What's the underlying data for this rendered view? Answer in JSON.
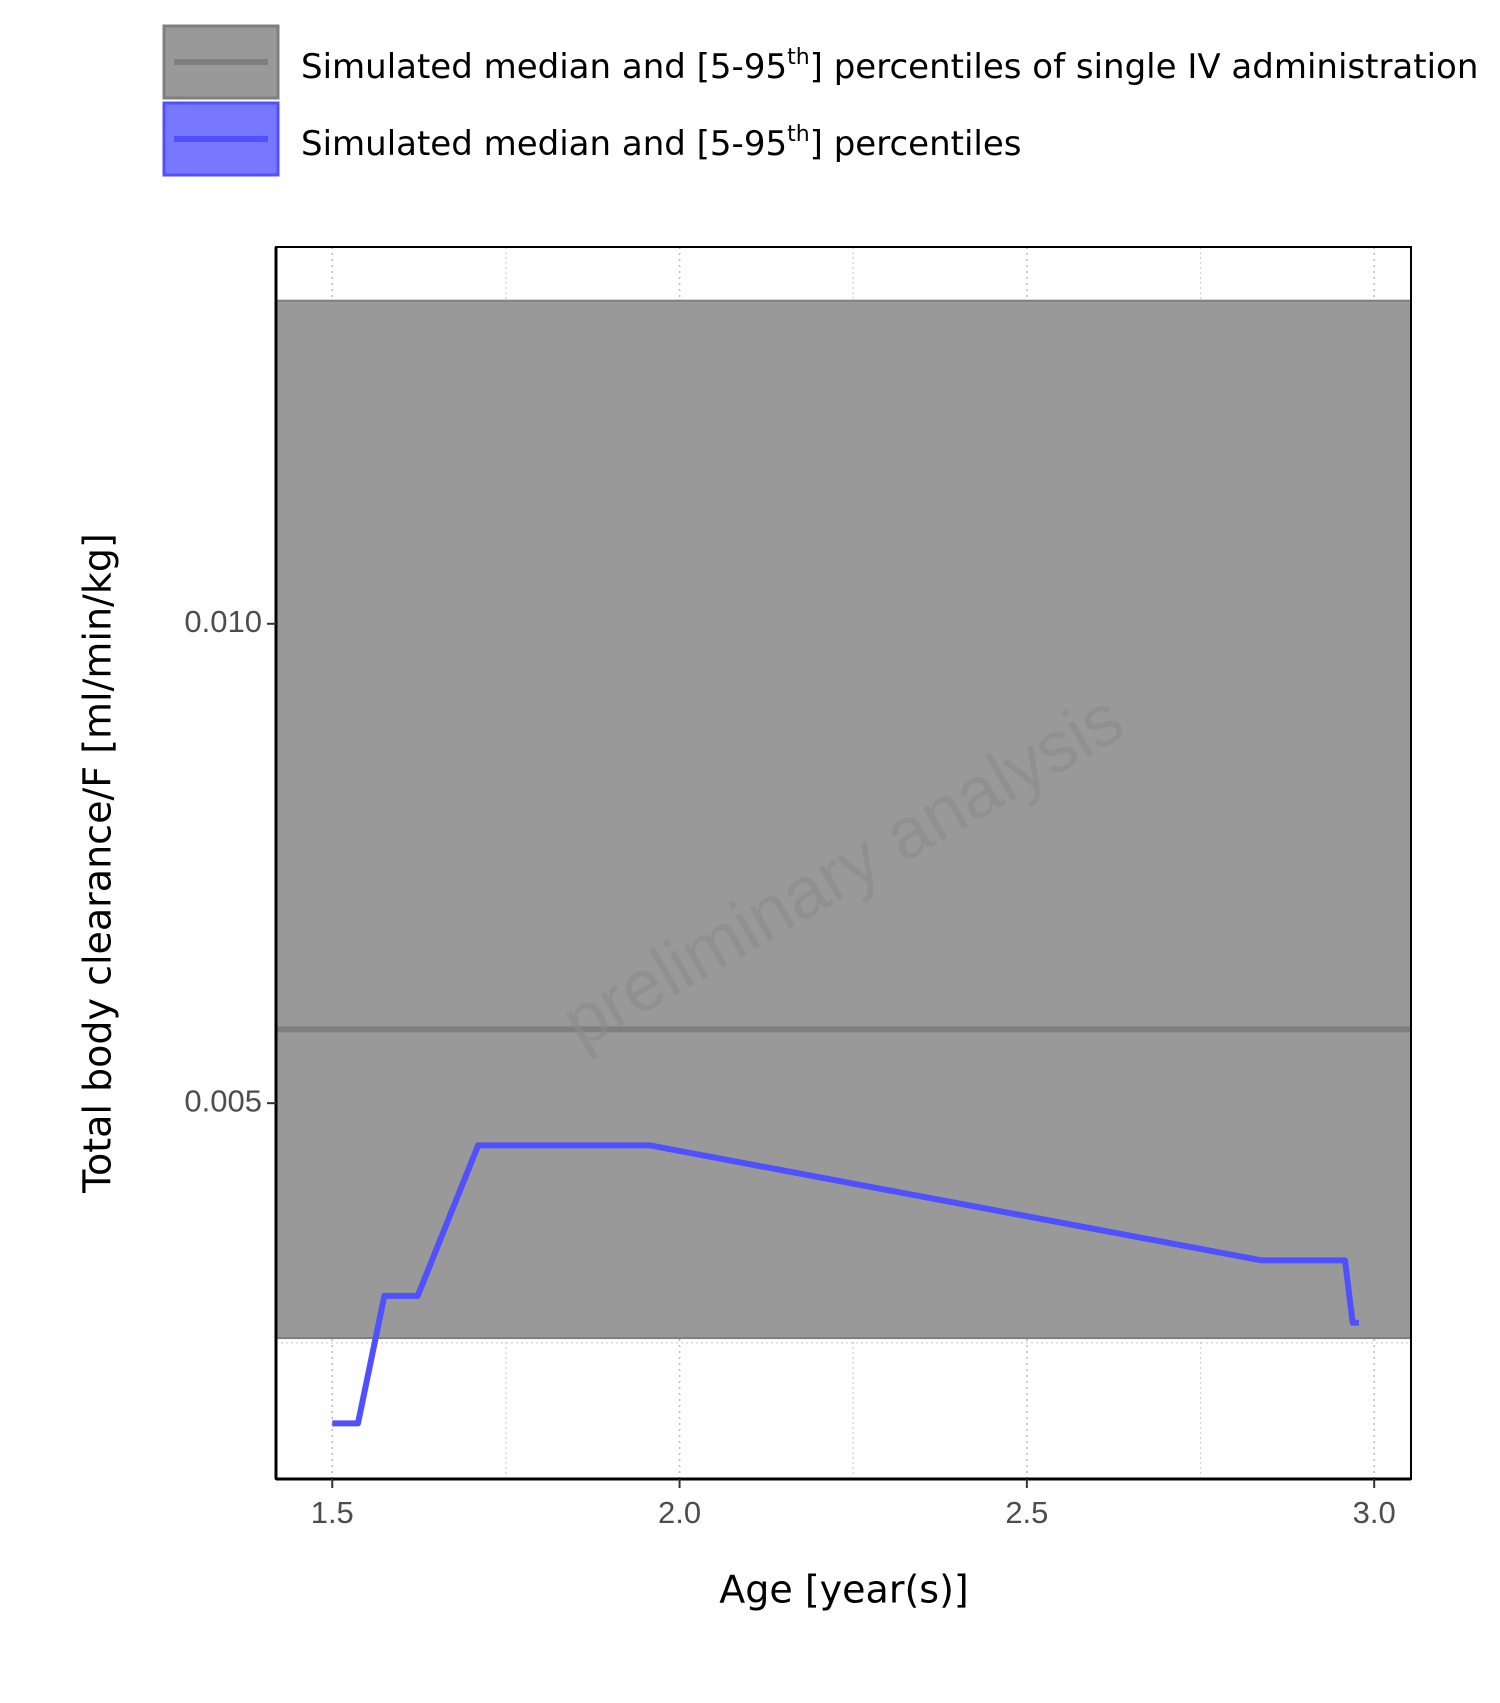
{
  "chart_data": {
    "type": "line",
    "xlabel": "Age [year(s)]",
    "ylabel": "Total body clearance/F [ml/min/kg]",
    "watermark": "preliminary analysis",
    "xlim": [
      1.419,
      3.053
    ],
    "ylim": [
      0.00108,
      0.01393
    ],
    "xticks": [
      1.5,
      {
        "value": 2,
        "label": "2.0"
      },
      2.5,
      {
        "value": 3,
        "label": "3.0"
      }
    ],
    "yticks": [
      0.005,
      {
        "value": 0.01,
        "label": "0.010"
      }
    ],
    "x_minor_ticks": [
      1.75,
      2.25,
      2.75
    ],
    "y_minor_ticks": [
      0.0025,
      0.0075
    ],
    "grid": true,
    "series": [
      {
        "name": "Simulated median and [5-95th] percentiles of single IV administration",
        "color": "#7f7f7f",
        "band_color": "#999999",
        "kind": "reference",
        "values": [
          0.00577
        ],
        "lower": [
          0.00255
        ],
        "upper": [
          0.01337
        ]
      },
      {
        "name": "Simulated median and [5-95th] percentiles",
        "color": "#5050ff",
        "band_color": "#7878ff",
        "kind": "line",
        "x": [
          1.5,
          1.537,
          1.575,
          1.623,
          1.71,
          1.957,
          2.838,
          2.958,
          2.969,
          2.978
        ],
        "values": [
          0.00166,
          0.00166,
          0.00299,
          0.00299,
          0.00456,
          0.00456,
          0.00336,
          0.00336,
          0.00271,
          0.00271
        ]
      }
    ]
  }
}
